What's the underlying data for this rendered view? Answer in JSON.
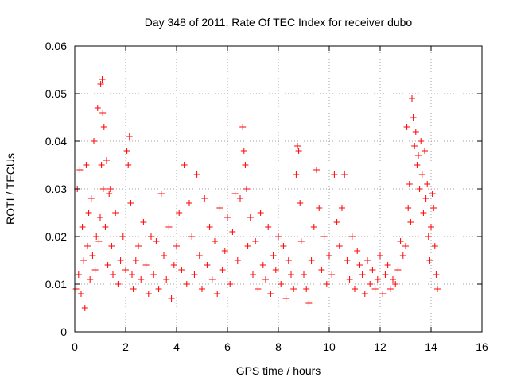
{
  "chart_data": {
    "type": "scatter",
    "title": "Day 348 of 2011, Rate Of TEC Index for receiver dubo",
    "xlabel": "GPS time / hours",
    "ylabel": "ROTI / TECUs",
    "xlim": [
      0,
      16
    ],
    "ylim": [
      0,
      0.06
    ],
    "xticks": [
      "0",
      "2",
      "4",
      "6",
      "8",
      "10",
      "12",
      "14",
      "16"
    ],
    "yticks": [
      "0",
      "0.01",
      "0.02",
      "0.03",
      "0.04",
      "0.05",
      "0.06"
    ],
    "grid": true,
    "marker": "plus",
    "color": "#ff0000",
    "series": [
      {
        "x": [
          0.05,
          0.1,
          0.15,
          0.2,
          0.25,
          0.3,
          0.35,
          0.4,
          0.45,
          0.5,
          0.55,
          0.6,
          0.65,
          0.7,
          0.75,
          0.8,
          0.85,
          0.9,
          0.95,
          1.0,
          1.02,
          1.05,
          1.08,
          1.1,
          1.12,
          1.15,
          1.2,
          1.25,
          1.3,
          1.35,
          1.4,
          1.45,
          1.5,
          1.6,
          1.7,
          1.8,
          1.9,
          2.0,
          2.05,
          2.1,
          2.15,
          2.2,
          2.25,
          2.3,
          2.4,
          2.5,
          2.6,
          2.7,
          2.8,
          2.9,
          3.0,
          3.1,
          3.2,
          3.3,
          3.4,
          3.5,
          3.6,
          3.7,
          3.8,
          3.9,
          4.0,
          4.1,
          4.2,
          4.3,
          4.4,
          4.5,
          4.6,
          4.7,
          4.8,
          4.9,
          5.0,
          5.1,
          5.2,
          5.3,
          5.4,
          5.5,
          5.6,
          5.7,
          5.8,
          5.9,
          6.0,
          6.1,
          6.2,
          6.3,
          6.4,
          6.5,
          6.6,
          6.65,
          6.7,
          6.75,
          6.8,
          6.9,
          7.0,
          7.1,
          7.2,
          7.3,
          7.4,
          7.5,
          7.6,
          7.7,
          7.8,
          7.9,
          8.0,
          8.1,
          8.2,
          8.3,
          8.4,
          8.5,
          8.6,
          8.7,
          8.75,
          8.8,
          8.85,
          8.9,
          9.0,
          9.1,
          9.2,
          9.3,
          9.4,
          9.5,
          9.6,
          9.7,
          9.8,
          9.9,
          10.0,
          10.1,
          10.2,
          10.3,
          10.4,
          10.5,
          10.6,
          10.7,
          10.8,
          10.9,
          11.0,
          11.1,
          11.2,
          11.3,
          11.4,
          11.5,
          11.6,
          11.7,
          11.8,
          11.9,
          12.0,
          12.1,
          12.2,
          12.3,
          12.4,
          12.5,
          12.6,
          12.7,
          12.8,
          12.9,
          13.0,
          13.05,
          13.1,
          13.15,
          13.2,
          13.25,
          13.3,
          13.35,
          13.4,
          13.45,
          13.5,
          13.55,
          13.6,
          13.65,
          13.7,
          13.75,
          13.8,
          13.85,
          13.9,
          13.95,
          14.0,
          14.05,
          14.1,
          14.15,
          14.2,
          14.25
        ],
        "y": [
          0.009,
          0.03,
          0.012,
          0.034,
          0.008,
          0.022,
          0.015,
          0.005,
          0.035,
          0.018,
          0.025,
          0.011,
          0.028,
          0.016,
          0.04,
          0.013,
          0.02,
          0.047,
          0.019,
          0.024,
          0.052,
          0.035,
          0.053,
          0.046,
          0.03,
          0.043,
          0.022,
          0.036,
          0.014,
          0.029,
          0.03,
          0.018,
          0.012,
          0.025,
          0.01,
          0.015,
          0.02,
          0.013,
          0.038,
          0.035,
          0.041,
          0.027,
          0.012,
          0.009,
          0.015,
          0.018,
          0.011,
          0.023,
          0.014,
          0.008,
          0.02,
          0.012,
          0.019,
          0.009,
          0.029,
          0.016,
          0.011,
          0.022,
          0.007,
          0.014,
          0.018,
          0.025,
          0.013,
          0.035,
          0.01,
          0.027,
          0.02,
          0.012,
          0.033,
          0.016,
          0.009,
          0.028,
          0.014,
          0.022,
          0.011,
          0.019,
          0.008,
          0.026,
          0.013,
          0.017,
          0.024,
          0.01,
          0.021,
          0.029,
          0.015,
          0.028,
          0.043,
          0.038,
          0.035,
          0.03,
          0.018,
          0.024,
          0.012,
          0.019,
          0.009,
          0.025,
          0.014,
          0.011,
          0.022,
          0.008,
          0.016,
          0.013,
          0.02,
          0.01,
          0.018,
          0.007,
          0.015,
          0.012,
          0.009,
          0.033,
          0.039,
          0.038,
          0.027,
          0.019,
          0.012,
          0.009,
          0.006,
          0.015,
          0.022,
          0.034,
          0.026,
          0.013,
          0.02,
          0.01,
          0.016,
          0.012,
          0.033,
          0.023,
          0.018,
          0.026,
          0.033,
          0.015,
          0.011,
          0.02,
          0.009,
          0.017,
          0.014,
          0.012,
          0.008,
          0.015,
          0.01,
          0.013,
          0.009,
          0.011,
          0.016,
          0.008,
          0.012,
          0.014,
          0.009,
          0.011,
          0.01,
          0.013,
          0.019,
          0.016,
          0.018,
          0.043,
          0.026,
          0.031,
          0.023,
          0.049,
          0.045,
          0.039,
          0.042,
          0.035,
          0.037,
          0.03,
          0.04,
          0.033,
          0.025,
          0.038,
          0.028,
          0.031,
          0.02,
          0.015,
          0.022,
          0.029,
          0.026,
          0.018,
          0.012,
          0.009
        ]
      }
    ]
  }
}
